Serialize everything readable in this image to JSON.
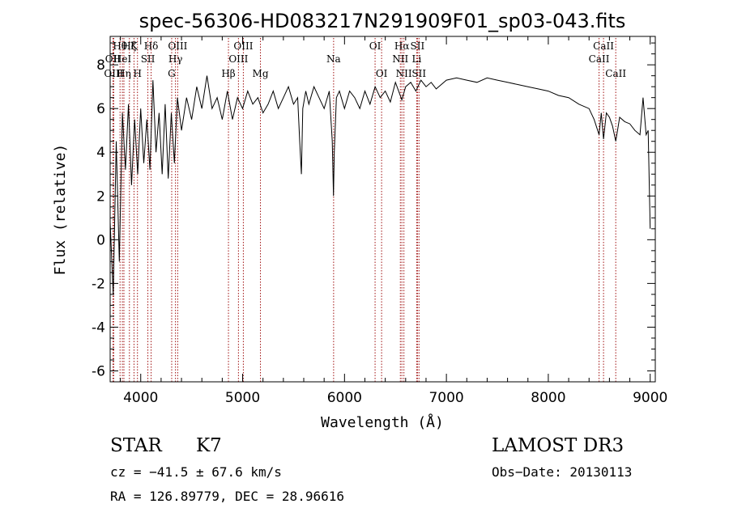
{
  "chart_data": {
    "type": "line",
    "title": "spec-56306-HD083217N291909F01_sp03-043.fits",
    "xlabel": "Wavelength (Å)",
    "ylabel": "Flux (relative)",
    "xlim": [
      3700,
      9050
    ],
    "ylim": [
      -6.5,
      9.3
    ],
    "x_ticks": [
      4000,
      5000,
      6000,
      7000,
      8000,
      9000
    ],
    "y_ticks": [
      -6,
      -4,
      -2,
      0,
      2,
      4,
      6,
      8
    ],
    "grid": false,
    "series": [
      {
        "x": [
          3700,
          3730,
          3760,
          3790,
          3820,
          3850,
          3880,
          3910,
          3940,
          3970,
          4000,
          4030,
          4060,
          4090,
          4120,
          4150,
          4180,
          4210,
          4240,
          4270,
          4300,
          4330,
          4360,
          4400,
          4450,
          4500,
          4550,
          4600,
          4650,
          4700,
          4750,
          4800,
          4850,
          4900,
          4950,
          5000,
          5050,
          5100,
          5150,
          5200,
          5250,
          5300,
          5350,
          5400,
          5450,
          5500,
          5540,
          5560,
          5577,
          5590,
          5620,
          5650,
          5700,
          5750,
          5800,
          5850,
          5880,
          5892,
          5900,
          5920,
          5950,
          6000,
          6050,
          6100,
          6150,
          6200,
          6250,
          6300,
          6350,
          6400,
          6450,
          6500,
          6563,
          6600,
          6650,
          6700,
          6750,
          6800,
          6850,
          6900,
          6950,
          7000,
          7100,
          7200,
          7300,
          7400,
          7500,
          7600,
          7700,
          7800,
          7900,
          8000,
          8100,
          8200,
          8300,
          8400,
          8450,
          8498,
          8520,
          8542,
          8570,
          8600,
          8630,
          8662,
          8700,
          8750,
          8800,
          8850,
          8900,
          8930,
          8960,
          8980,
          9000
        ],
        "y": [
          0.8,
          -2.5,
          4.5,
          -1.0,
          5.8,
          3.2,
          6.2,
          2.5,
          5.5,
          3.0,
          6.0,
          3.5,
          5.5,
          3.2,
          7.3,
          4.0,
          5.8,
          3.0,
          6.2,
          2.8,
          5.8,
          3.5,
          6.5,
          5.0,
          6.5,
          5.5,
          7.0,
          6.0,
          7.5,
          6.0,
          6.5,
          5.5,
          6.8,
          5.5,
          6.5,
          6.0,
          6.8,
          6.2,
          6.5,
          5.8,
          6.2,
          6.8,
          6.0,
          6.5,
          7.0,
          6.2,
          6.5,
          4.5,
          3.0,
          6.0,
          6.8,
          6.2,
          7.0,
          6.5,
          6.0,
          6.8,
          4.5,
          2.0,
          4.0,
          6.5,
          6.8,
          6.0,
          6.8,
          6.5,
          6.0,
          6.8,
          6.2,
          7.0,
          6.5,
          6.8,
          6.3,
          7.2,
          6.4,
          7.0,
          7.2,
          6.8,
          7.3,
          7.0,
          7.2,
          6.9,
          7.1,
          7.3,
          7.4,
          7.3,
          7.2,
          7.4,
          7.3,
          7.2,
          7.1,
          7.0,
          6.9,
          6.8,
          6.6,
          6.5,
          6.2,
          6.0,
          5.5,
          4.8,
          5.8,
          4.6,
          5.8,
          5.6,
          5.2,
          4.5,
          5.6,
          5.4,
          5.3,
          5.0,
          4.8,
          6.5,
          4.8,
          5.0,
          0.5
        ]
      }
    ],
    "spectral_lines": [
      {
        "label": "Hθ",
        "wl": 3797,
        "row": 0
      },
      {
        "label": "OII",
        "wl": 3727,
        "row": 1
      },
      {
        "label": "OIII",
        "wl": 3735,
        "row": 2
      },
      {
        "label": "Hζ",
        "wl": 3889,
        "row": 0
      },
      {
        "label": "HeI",
        "wl": 3820,
        "row": 1
      },
      {
        "label": "Hη",
        "wl": 3835,
        "row": 2
      },
      {
        "label": "K",
        "wl": 3934,
        "row": 0
      },
      {
        "label": "SII",
        "wl": 4070,
        "row": 1
      },
      {
        "label": "H",
        "wl": 3968,
        "row": 2
      },
      {
        "label": "Hδ",
        "wl": 4102,
        "row": 0
      },
      {
        "label": "OIII",
        "wl": 4363,
        "row": 0
      },
      {
        "label": "Hγ",
        "wl": 4341,
        "row": 1
      },
      {
        "label": "G",
        "wl": 4304,
        "row": 2
      },
      {
        "label": "Hβ",
        "wl": 4861,
        "row": 2
      },
      {
        "label": "OIII",
        "wl": 5007,
        "row": 0
      },
      {
        "label": "OIII",
        "wl": 4959,
        "row": 1
      },
      {
        "label": "Mg",
        "wl": 5175,
        "row": 2
      },
      {
        "label": "Na",
        "wl": 5893,
        "row": 1
      },
      {
        "label": "OI",
        "wl": 6300,
        "row": 0
      },
      {
        "label": "OI",
        "wl": 6364,
        "row": 2
      },
      {
        "label": "Hα",
        "wl": 6563,
        "row": 0
      },
      {
        "label": "NII",
        "wl": 6548,
        "row": 1
      },
      {
        "label": "NII",
        "wl": 6583,
        "row": 2
      },
      {
        "label": "SII",
        "wl": 6716,
        "row": 0
      },
      {
        "label": "Li",
        "wl": 6708,
        "row": 1
      },
      {
        "label": "SII",
        "wl": 6731,
        "row": 2
      },
      {
        "label": "CaII",
        "wl": 8542,
        "row": 0
      },
      {
        "label": "CaII",
        "wl": 8498,
        "row": 1
      },
      {
        "label": "CaII",
        "wl": 8662,
        "row": 2
      }
    ]
  },
  "info": {
    "object_class": "STAR",
    "subclass": "K7",
    "survey": "LAMOST DR3",
    "cz": "cz = −41.5 ± 67.6 km/s",
    "obs_date": "Obs−Date: 20130113",
    "coords": "RA = 126.89779, DEC =  28.96616"
  },
  "colors": {
    "line_markers": "#a01010",
    "spectrum": "#000000"
  }
}
